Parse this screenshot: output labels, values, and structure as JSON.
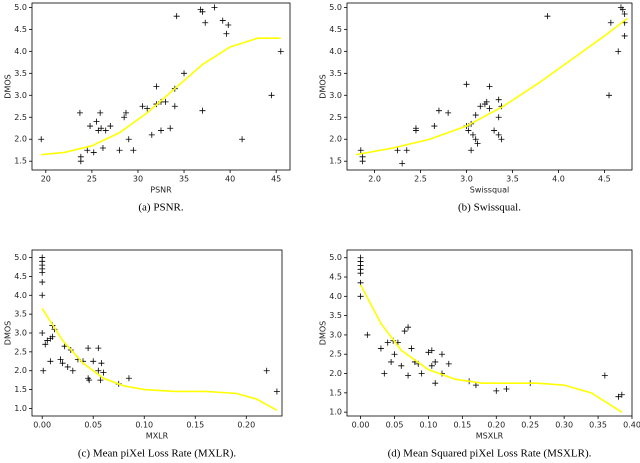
{
  "chart_data": [
    {
      "type": "scatter",
      "caption": "(a) PSNR.",
      "xlabel": "PSNR",
      "ylabel": "DMOS",
      "xlim": [
        18.5,
        46.5
      ],
      "xticks": [
        20,
        25,
        30,
        35,
        40,
        45
      ],
      "ylim": [
        1.3,
        5.1
      ],
      "yticks": [
        1.5,
        {
          "value": 2,
          "label": "2.0"
        },
        2.5,
        {
          "value": 3,
          "label": "3.0"
        },
        3.5,
        {
          "value": 4,
          "label": "4.0"
        },
        4.5,
        {
          "value": 5,
          "label": "5.0"
        }
      ],
      "series": [
        {
          "style": "marker",
          "marker": "+",
          "color": "#000000",
          "x": [
            19.5,
            23.7,
            23.8,
            23.8,
            24.5,
            24.8,
            25.2,
            25.5,
            25.7,
            25.9,
            26,
            26.2,
            26.5,
            27,
            28,
            28.5,
            28.7,
            29,
            29.5,
            30.5,
            31,
            31.5,
            32,
            32,
            32.5,
            32.5,
            33,
            33.5,
            34,
            34,
            34.2,
            35,
            36.8,
            37,
            37,
            37.3,
            38.3,
            39.2,
            39.6,
            39.8,
            41.3,
            44.5,
            45.5
          ],
          "y": [
            2.0,
            2.6,
            1.5,
            1.6,
            1.75,
            2.3,
            1.7,
            2.4,
            2.2,
            2.6,
            2.25,
            1.8,
            2.2,
            2.3,
            1.75,
            2.5,
            2.6,
            2.0,
            1.75,
            2.75,
            2.7,
            2.1,
            3.2,
            2.8,
            2.2,
            2.85,
            2.85,
            2.25,
            2.75,
            3.15,
            4.8,
            3.5,
            4.95,
            4.9,
            2.65,
            4.65,
            5.0,
            4.7,
            4.4,
            4.6,
            2.0,
            3.0,
            4.0
          ]
        },
        {
          "style": "line",
          "color": "#ffff00",
          "x": [
            19.5,
            22,
            25,
            28,
            31,
            34,
            37,
            40,
            43,
            45.5
          ],
          "y": [
            1.65,
            1.7,
            1.85,
            2.15,
            2.6,
            3.15,
            3.7,
            4.1,
            4.3,
            4.3
          ]
        }
      ]
    },
    {
      "type": "scatter",
      "caption": "(b) Swissqual.",
      "xlabel": "Swissqual",
      "ylabel": "DMOS",
      "xlim": [
        1.7,
        4.8
      ],
      "xticks": [
        {
          "value": 2,
          "label": "2.0"
        },
        2.5,
        {
          "value": 3,
          "label": "3.0"
        },
        3.5,
        {
          "value": 4,
          "label": "4.0"
        },
        4.5
      ],
      "ylim": [
        1.3,
        5.1
      ],
      "yticks": [
        1.5,
        {
          "value": 2,
          "label": "2.0"
        },
        2.5,
        {
          "value": 3,
          "label": "3.0"
        },
        3.5,
        {
          "value": 4,
          "label": "4.0"
        },
        4.5,
        {
          "value": 5,
          "label": "5.0"
        }
      ],
      "series": [
        {
          "style": "marker",
          "marker": "+",
          "color": "#000000",
          "x": [
            1.85,
            1.87,
            1.87,
            2.25,
            2.3,
            2.35,
            2.45,
            2.45,
            2.65,
            2.7,
            2.8,
            3.0,
            3.0,
            3.02,
            3.05,
            3.05,
            3.07,
            3.1,
            3.1,
            3.12,
            3.15,
            3.2,
            3.22,
            3.25,
            3.25,
            3.3,
            3.35,
            3.35,
            3.35,
            3.38,
            3.38,
            3.88,
            4.55,
            4.57,
            4.65,
            4.68,
            4.7,
            4.72,
            4.72,
            4.72
          ],
          "y": [
            1.75,
            1.6,
            1.5,
            1.75,
            1.45,
            1.75,
            2.2,
            2.25,
            2.3,
            2.65,
            2.6,
            3.25,
            2.3,
            2.2,
            2.35,
            1.75,
            2.1,
            2.0,
            2.55,
            1.9,
            2.75,
            2.8,
            2.85,
            3.2,
            2.7,
            2.2,
            2.5,
            2.1,
            2.9,
            2.0,
            2.75,
            4.8,
            3.0,
            4.65,
            4.0,
            5.0,
            4.95,
            4.85,
            4.65,
            4.35
          ]
        },
        {
          "style": "line",
          "color": "#ffff00",
          "x": [
            1.8,
            2.2,
            2.6,
            3.0,
            3.4,
            3.8,
            4.2,
            4.5,
            4.75
          ],
          "y": [
            1.65,
            1.8,
            2.0,
            2.3,
            2.75,
            3.3,
            3.9,
            4.35,
            4.75
          ]
        }
      ]
    },
    {
      "type": "scatter",
      "caption": "(c) Mean piXel Loss Rate (MXLR).",
      "xlabel": "MXLR",
      "ylabel": "DMOS",
      "xlim": [
        -0.01,
        0.235
      ],
      "xticks": [
        {
          "value": 0,
          "label": "0.00"
        },
        0.05,
        {
          "value": 0.1,
          "label": "0.10"
        },
        0.15,
        {
          "value": 0.2,
          "label": "0.20"
        }
      ],
      "ylim": [
        0.8,
        5.2
      ],
      "yticks": [
        {
          "value": 1,
          "label": "1.0"
        },
        1.5,
        {
          "value": 2,
          "label": "2.0"
        },
        2.5,
        {
          "value": 3,
          "label": "3.0"
        },
        3.5,
        {
          "value": 4,
          "label": "4.0"
        },
        4.5,
        {
          "value": 5,
          "label": "5.0"
        }
      ],
      "series": [
        {
          "style": "marker",
          "marker": "+",
          "color": "#000000",
          "x": [
            0,
            0,
            0,
            0,
            0,
            0,
            0,
            0,
            0.001,
            0.003,
            0.005,
            0.008,
            0.01,
            0.012,
            0.008,
            0.01,
            0.018,
            0.02,
            0.022,
            0.025,
            0.028,
            0.03,
            0.035,
            0.04,
            0.045,
            0.045,
            0.046,
            0.05,
            0.055,
            0.055,
            0.057,
            0.06,
            0.058,
            0.075,
            0.085,
            0.22,
            0.23
          ],
          "y": [
            5.0,
            4.9,
            4.8,
            4.7,
            4.6,
            4.35,
            4.0,
            3.0,
            2.0,
            2.7,
            2.8,
            2.85,
            3.2,
            3.1,
            2.25,
            2.9,
            2.3,
            2.2,
            2.65,
            2.1,
            2.55,
            2.0,
            2.3,
            2.25,
            2.6,
            1.8,
            1.75,
            2.25,
            2.0,
            2.6,
            1.75,
            1.95,
            2.2,
            1.65,
            1.8,
            2.0,
            1.45
          ]
        },
        {
          "style": "line",
          "color": "#ffff00",
          "x": [
            0,
            0.02,
            0.04,
            0.06,
            0.08,
            0.1,
            0.13,
            0.16,
            0.19,
            0.21,
            0.23
          ],
          "y": [
            3.65,
            2.8,
            2.2,
            1.8,
            1.6,
            1.5,
            1.45,
            1.45,
            1.4,
            1.25,
            0.95
          ]
        }
      ]
    },
    {
      "type": "scatter",
      "caption": "(d) Mean Squared piXel Loss Rate (MSXLR).",
      "xlabel": "MSXLR",
      "ylabel": "DMOS",
      "xlim": [
        -0.02,
        0.4
      ],
      "xticks": [
        {
          "value": 0,
          "label": "0.00"
        },
        0.05,
        {
          "value": 0.1,
          "label": "0.10"
        },
        0.15,
        {
          "value": 0.2,
          "label": "0.20"
        },
        0.25,
        {
          "value": 0.3,
          "label": "0.30"
        },
        0.35,
        {
          "value": 0.4,
          "label": "0.40"
        }
      ],
      "ylim": [
        0.9,
        5.2
      ],
      "yticks": [
        {
          "value": 1,
          "label": "1.0"
        },
        1.5,
        {
          "value": 2,
          "label": "2.0"
        },
        2.5,
        {
          "value": 3,
          "label": "3.0"
        },
        3.5,
        {
          "value": 4,
          "label": "4.0"
        },
        4.5,
        {
          "value": 5,
          "label": "5.0"
        }
      ],
      "series": [
        {
          "style": "marker",
          "marker": "+",
          "color": "#000000",
          "x": [
            0,
            0,
            0,
            0,
            0,
            0,
            0,
            0.01,
            0.03,
            0.035,
            0.04,
            0.045,
            0.048,
            0.05,
            0.055,
            0.06,
            0.065,
            0.07,
            0.07,
            0.075,
            0.08,
            0.085,
            0.09,
            0.1,
            0.105,
            0.105,
            0.11,
            0.11,
            0.12,
            0.12,
            0.13,
            0.16,
            0.17,
            0.2,
            0.215,
            0.25,
            0.36,
            0.385,
            0.38
          ],
          "y": [
            5.0,
            4.9,
            4.8,
            4.7,
            4.6,
            4.35,
            4.0,
            3.0,
            2.65,
            2.0,
            2.8,
            2.3,
            2.85,
            2.5,
            2.8,
            2.2,
            3.1,
            3.2,
            1.95,
            2.65,
            2.3,
            2.25,
            2.0,
            2.55,
            2.2,
            2.6,
            2.3,
            1.75,
            2.5,
            2.0,
            2.25,
            1.8,
            1.7,
            1.55,
            1.6,
            1.75,
            1.95,
            1.45,
            1.4
          ]
        },
        {
          "style": "line",
          "color": "#ffff00",
          "x": [
            0,
            0.03,
            0.06,
            0.1,
            0.14,
            0.18,
            0.22,
            0.26,
            0.3,
            0.34,
            0.385
          ],
          "y": [
            4.3,
            3.3,
            2.6,
            2.1,
            1.85,
            1.75,
            1.75,
            1.75,
            1.7,
            1.5,
            1.0
          ]
        }
      ]
    }
  ]
}
